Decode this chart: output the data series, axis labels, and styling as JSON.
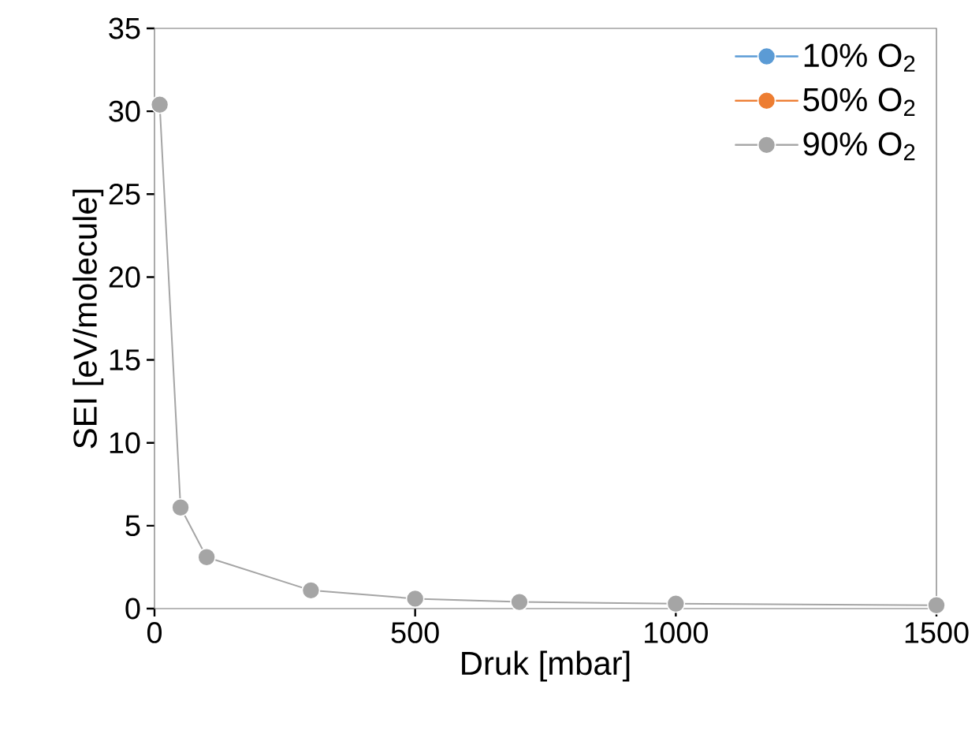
{
  "chart_data": {
    "type": "line",
    "xlabel": "Druk [mbar]",
    "ylabel": "SEI [eV/molecule]",
    "x": [
      10,
      50,
      100,
      300,
      500,
      700,
      1000,
      1500
    ],
    "series": [
      {
        "name": "10% O$_{2}$",
        "color": "#5b9bd5",
        "values": [
          null,
          null,
          null,
          null,
          null,
          null,
          null,
          null
        ]
      },
      {
        "name": "50% O$_{2}$",
        "color": "#ed7d31",
        "values": [
          null,
          null,
          null,
          null,
          null,
          null,
          null,
          null
        ]
      },
      {
        "name": "90% O$_{2}$",
        "color": "#a5a5a5",
        "values": [
          30.4,
          6.1,
          3.1,
          1.1,
          0.6,
          0.4,
          0.3,
          0.2
        ]
      }
    ],
    "xlim": [
      0,
      1500
    ],
    "xticks": [
      0,
      500,
      1000,
      1500
    ],
    "ylim": [
      0,
      35
    ],
    "yticks": [
      0,
      5,
      10,
      15,
      20,
      25,
      30,
      35
    ],
    "grid": false,
    "legend": "top right",
    "marker": "circle",
    "line_style": "solid"
  }
}
